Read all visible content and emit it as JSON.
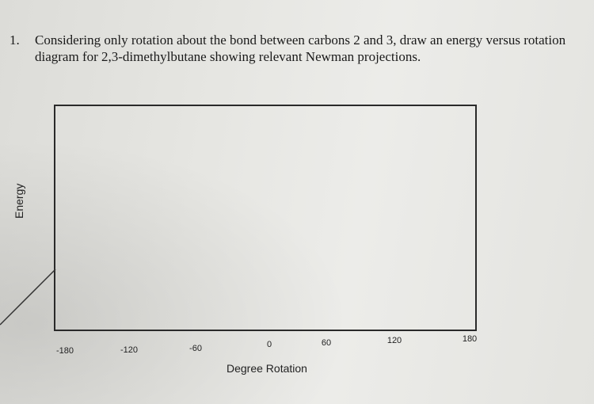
{
  "question": {
    "number": "1.",
    "text": "Considering only rotation about the bond between carbons 2 and 3, draw an energy versus rotation diagram for 2,3-dimethylbutane showing relevant Newman projections."
  },
  "axes": {
    "ylabel": "Energy",
    "xlabel": "Degree Rotation",
    "xticks": [
      "-180",
      "-120",
      "-60",
      "0",
      "60",
      "120",
      "180"
    ]
  }
}
